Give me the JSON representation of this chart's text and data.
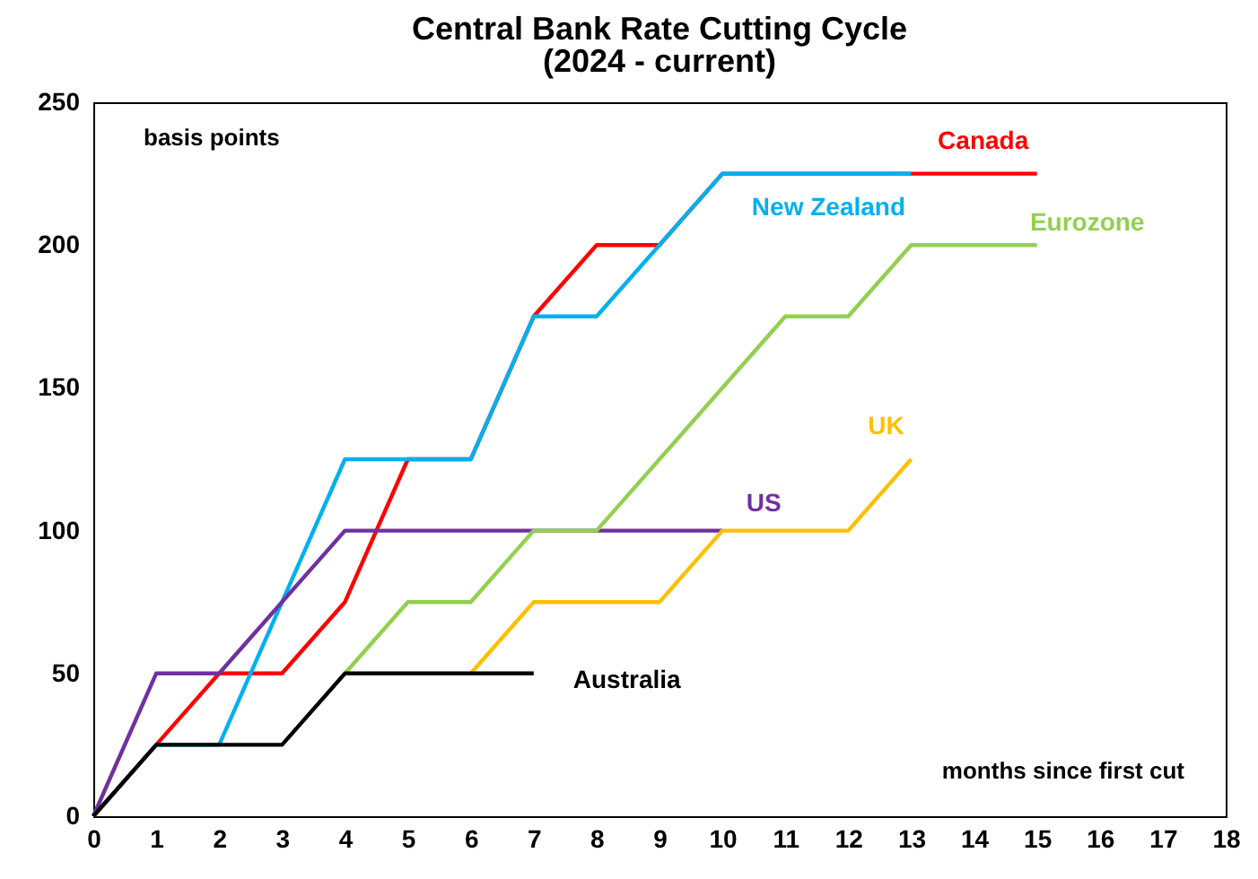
{
  "chart_data": {
    "type": "line",
    "title": "Central Bank Rate Cutting Cycle",
    "subtitle": "(2024 - current)",
    "annotations": [
      "basis points",
      "months since first cut"
    ],
    "xlim": [
      0,
      18
    ],
    "xticks": [
      0,
      1,
      2,
      3,
      4,
      5,
      6,
      7,
      8,
      9,
      10,
      11,
      12,
      13,
      14,
      15,
      16,
      17,
      18
    ],
    "ylim": [
      0,
      250
    ],
    "yticks": [
      0,
      50,
      100,
      150,
      200,
      250
    ],
    "grid": false,
    "marker": "none",
    "line_style": "solid",
    "series": [
      {
        "name": "Canada",
        "color": "#ff0000",
        "x": [
          0,
          1,
          2,
          3,
          4,
          5,
          6,
          7,
          8,
          9,
          10,
          15
        ],
        "values": [
          0,
          25,
          50,
          50,
          75,
          125,
          125,
          175,
          200,
          200,
          225,
          225
        ]
      },
      {
        "name": "New Zealand",
        "color": "#00b0f0",
        "x": [
          0,
          1,
          2,
          4,
          6,
          7,
          8,
          10,
          13
        ],
        "values": [
          0,
          25,
          25,
          125,
          125,
          175,
          175,
          225,
          225
        ]
      },
      {
        "name": "US",
        "color": "#7030a0",
        "x": [
          0,
          1,
          2,
          4,
          10
        ],
        "values": [
          0,
          50,
          50,
          100,
          100
        ]
      },
      {
        "name": "Eurozone",
        "color": "#92d050",
        "x": [
          4,
          5,
          6,
          7,
          8,
          11,
          12,
          13,
          15
        ],
        "values": [
          50,
          75,
          75,
          100,
          100,
          175,
          175,
          200,
          200
        ]
      },
      {
        "name": "UK",
        "color": "#ffc000",
        "x": [
          6,
          7,
          9,
          10,
          12,
          13
        ],
        "values": [
          50,
          75,
          75,
          100,
          100,
          125
        ]
      },
      {
        "name": "Australia",
        "color": "#000000",
        "x": [
          0,
          1,
          3,
          4,
          7
        ],
        "values": [
          0,
          25,
          25,
          50,
          50
        ]
      }
    ]
  }
}
